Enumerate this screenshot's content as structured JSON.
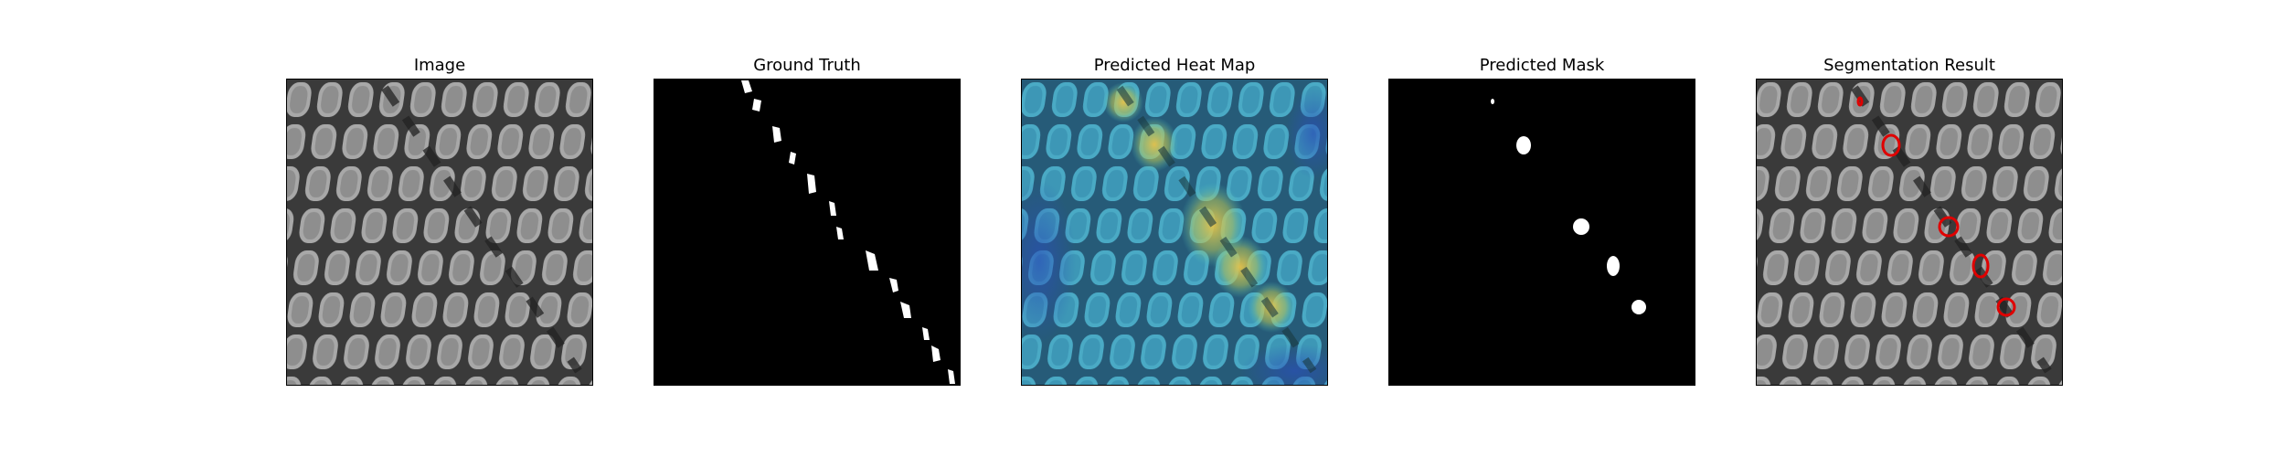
{
  "panels": [
    {
      "title": "Image",
      "kind": "image"
    },
    {
      "title": "Ground Truth",
      "kind": "ground-truth"
    },
    {
      "title": "Predicted Heat Map",
      "kind": "heatmap"
    },
    {
      "title": "Predicted Mask",
      "kind": "mask"
    },
    {
      "title": "Segmentation Result",
      "kind": "segmentation"
    }
  ],
  "colors": {
    "mask_white": "#ffffff",
    "mask_black": "#000000",
    "contour_red": "#e00000",
    "heat_blue": "#3a7fc8",
    "heat_cyan": "#4fd0c8",
    "heat_yellow": "#e6c24a"
  }
}
